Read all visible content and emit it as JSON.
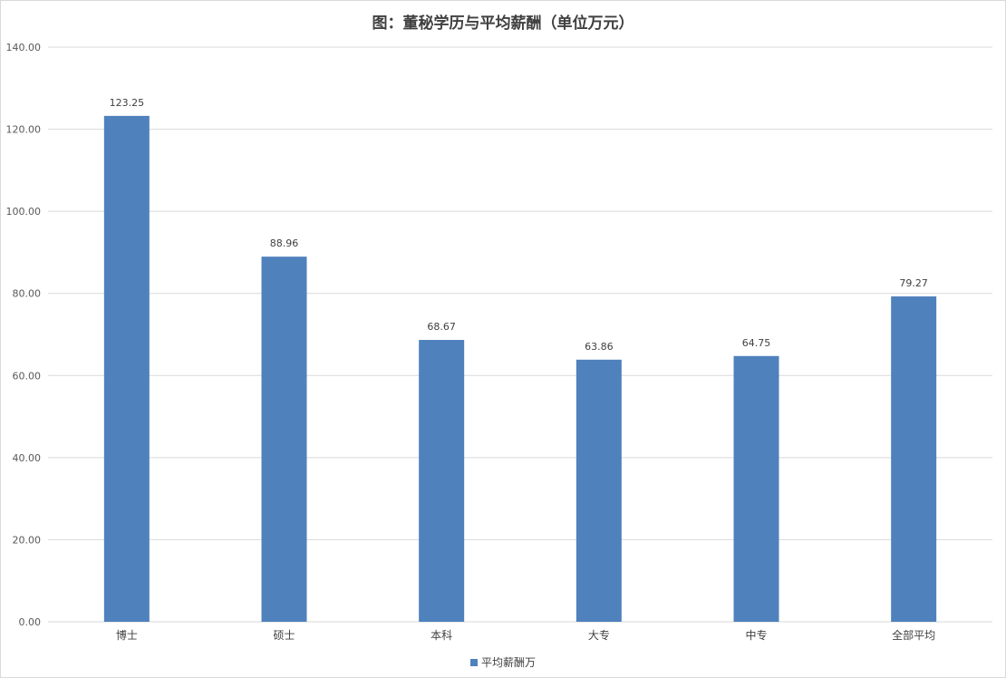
{
  "chart_data": {
    "type": "bar",
    "title": "图：董秘学历与平均薪酬（单位万元）",
    "categories": [
      "博士",
      "硕士",
      "本科",
      "大专",
      "中专",
      "全部平均"
    ],
    "series": [
      {
        "name": "平均薪酬万",
        "values": [
          123.25,
          88.96,
          68.67,
          63.86,
          64.75,
          79.27
        ],
        "data_labels": [
          "123.25",
          "88.96",
          "68.67",
          "63.86",
          "64.75",
          "79.27"
        ]
      }
    ],
    "y_ticks": [
      "0.00",
      "20.00",
      "40.00",
      "60.00",
      "80.00",
      "100.00",
      "120.00",
      "140.00"
    ],
    "ylim": [
      0,
      140
    ],
    "y_step": 20,
    "grid": true,
    "legend_position": "bottom",
    "bar_color": "#4f81bd",
    "grid_color": "#d9d9d9"
  }
}
